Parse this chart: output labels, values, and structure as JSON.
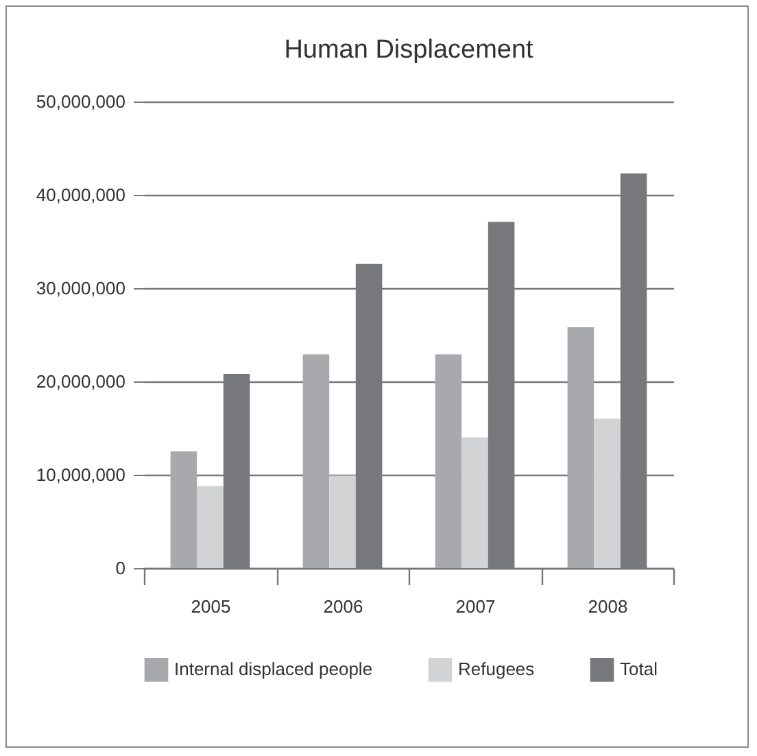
{
  "chart_data": {
    "type": "bar",
    "title": "Human Displacement",
    "categories": [
      "2005",
      "2006",
      "2007",
      "2008"
    ],
    "series": [
      {
        "name": "Internal displaced people",
        "color": "#a7a9ac",
        "values": [
          12500000,
          22900000,
          22900000,
          25800000
        ]
      },
      {
        "name": "Refugees",
        "color": "#d1d3d4",
        "values": [
          8800000,
          9900000,
          14000000,
          16000000
        ]
      },
      {
        "name": "Total",
        "color": "#77787b",
        "values": [
          20800000,
          32600000,
          37100000,
          42300000
        ]
      }
    ],
    "ylim": [
      0,
      50000000
    ],
    "yticks": [
      0,
      {
        "value": 10000000,
        "label": "10,000,000"
      },
      {
        "value": 20000000,
        "label": "20,000,000"
      },
      {
        "value": 30000000,
        "label": "30,000,000"
      },
      {
        "value": 40000000,
        "label": "40,000,000"
      },
      {
        "value": 50000000,
        "label": "50,000,000"
      }
    ],
    "grid": "y",
    "legend": "bottom"
  }
}
